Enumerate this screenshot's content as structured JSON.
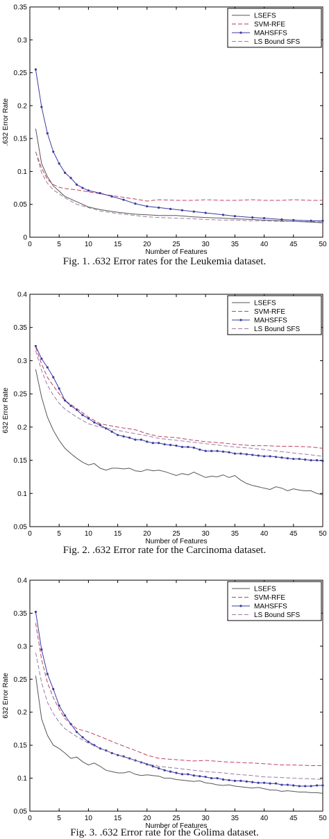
{
  "chart_data": [
    {
      "type": "line",
      "caption": "Fig. 1.  .632 Error rates for the Leukemia dataset.",
      "xlabel": "Number of Features",
      "ylabel": ".632 Error Rate",
      "xlim": [
        0,
        50
      ],
      "ylim": [
        0,
        0.35
      ],
      "xticks": [
        0,
        5,
        10,
        15,
        20,
        25,
        30,
        35,
        40,
        45,
        50
      ],
      "yticks": [
        0,
        0.05,
        0.1,
        0.15,
        0.2,
        0.25,
        0.3,
        0.35
      ],
      "ytick_labels": [
        "0",
        "0.05",
        "0.1",
        "0.15",
        "0.2",
        "0.25",
        "0.3",
        "0.35"
      ],
      "legend_position": "top-right",
      "series": [
        {
          "name": "LSEFS",
          "color": "#555555",
          "dash": "solid",
          "marker": false,
          "x": [
            1,
            2,
            3,
            4,
            5,
            6,
            8,
            10,
            12,
            15,
            18,
            20,
            22,
            25,
            28,
            30,
            33,
            35,
            38,
            40,
            43,
            45,
            48,
            50
          ],
          "y": [
            0.165,
            0.112,
            0.092,
            0.078,
            0.07,
            0.062,
            0.054,
            0.046,
            0.042,
            0.038,
            0.035,
            0.034,
            0.033,
            0.033,
            0.031,
            0.03,
            0.029,
            0.028,
            0.027,
            0.026,
            0.025,
            0.024,
            0.023,
            0.022
          ]
        },
        {
          "name": "SVM-RFE",
          "color": "#c04060",
          "dash": "dashed",
          "marker": false,
          "x": [
            1,
            2,
            3,
            4,
            5,
            6,
            8,
            10,
            12,
            15,
            18,
            20,
            22,
            25,
            28,
            30,
            33,
            35,
            38,
            40,
            43,
            45,
            48,
            50
          ],
          "y": [
            0.13,
            0.105,
            0.088,
            0.08,
            0.076,
            0.074,
            0.072,
            0.069,
            0.066,
            0.062,
            0.058,
            0.055,
            0.057,
            0.056,
            0.056,
            0.057,
            0.056,
            0.056,
            0.057,
            0.056,
            0.056,
            0.057,
            0.056,
            0.056
          ]
        },
        {
          "name": "MAHSFFS",
          "color": "#3a3aa0",
          "dash": "solid",
          "marker": true,
          "x": [
            1,
            2,
            3,
            4,
            5,
            6,
            7,
            8,
            9,
            10,
            12,
            14,
            16,
            18,
            20,
            22,
            24,
            26,
            28,
            30,
            33,
            35,
            38,
            40,
            43,
            45,
            48,
            50
          ],
          "y": [
            0.255,
            0.198,
            0.158,
            0.13,
            0.112,
            0.098,
            0.09,
            0.08,
            0.075,
            0.071,
            0.067,
            0.062,
            0.057,
            0.051,
            0.047,
            0.045,
            0.043,
            0.041,
            0.039,
            0.037,
            0.034,
            0.032,
            0.03,
            0.029,
            0.027,
            0.026,
            0.025,
            0.025
          ]
        },
        {
          "name": "LS Bound SFS",
          "color": "#9a7aa0",
          "dash": "dashed",
          "marker": false,
          "x": [
            1,
            2,
            3,
            4,
            5,
            6,
            8,
            10,
            12,
            15,
            18,
            20,
            22,
            25,
            28,
            30,
            33,
            35,
            38,
            40,
            43,
            45,
            48,
            50
          ],
          "y": [
            0.13,
            0.098,
            0.082,
            0.072,
            0.066,
            0.06,
            0.05,
            0.045,
            0.04,
            0.036,
            0.033,
            0.031,
            0.03,
            0.029,
            0.028,
            0.027,
            0.026,
            0.026,
            0.025,
            0.025,
            0.024,
            0.024,
            0.024,
            0.023
          ]
        }
      ]
    },
    {
      "type": "line",
      "caption": "Fig. 2.  .632 Error rate for the Carcinoma dataset.",
      "xlabel": "Number of Features",
      "ylabel": "632 Error Rate",
      "xlim": [
        0,
        50
      ],
      "ylim": [
        0.05,
        0.4
      ],
      "xticks": [
        0,
        5,
        10,
        15,
        20,
        25,
        30,
        35,
        40,
        45,
        50
      ],
      "yticks": [
        0.05,
        0.1,
        0.15,
        0.2,
        0.25,
        0.3,
        0.35,
        0.4
      ],
      "ytick_labels": [
        "0.05",
        "0.1",
        "0.15",
        "0.2",
        "0.25",
        "0.3",
        "0.35",
        "0.4"
      ],
      "legend_position": "top-right",
      "series": [
        {
          "name": "LSEFS",
          "color": "#555555",
          "dash": "solid",
          "marker": false,
          "x": [
            1,
            2,
            3,
            4,
            5,
            6,
            7,
            8,
            9,
            10,
            11,
            12,
            13,
            14,
            15,
            16,
            17,
            18,
            19,
            20,
            21,
            22,
            23,
            24,
            25,
            26,
            27,
            28,
            29,
            30,
            31,
            32,
            33,
            34,
            35,
            36,
            37,
            38,
            39,
            40,
            41,
            42,
            43,
            44,
            45,
            46,
            47,
            48,
            49,
            50
          ],
          "y": [
            0.287,
            0.245,
            0.215,
            0.195,
            0.18,
            0.168,
            0.16,
            0.153,
            0.147,
            0.143,
            0.145,
            0.138,
            0.135,
            0.138,
            0.138,
            0.137,
            0.138,
            0.134,
            0.133,
            0.136,
            0.134,
            0.135,
            0.133,
            0.13,
            0.127,
            0.13,
            0.128,
            0.132,
            0.128,
            0.124,
            0.126,
            0.125,
            0.128,
            0.124,
            0.127,
            0.12,
            0.115,
            0.112,
            0.11,
            0.108,
            0.106,
            0.11,
            0.108,
            0.104,
            0.107,
            0.105,
            0.104,
            0.104,
            0.1,
            0.098
          ]
        },
        {
          "name": "SVM-RFE",
          "color": "#c04060",
          "dash": "dashed",
          "marker": false,
          "x": [
            1,
            2,
            3,
            4,
            5,
            6,
            8,
            10,
            12,
            15,
            18,
            20,
            22,
            25,
            28,
            30,
            33,
            35,
            38,
            40,
            43,
            45,
            48,
            50
          ],
          "y": [
            0.32,
            0.295,
            0.275,
            0.262,
            0.25,
            0.24,
            0.228,
            0.215,
            0.205,
            0.2,
            0.196,
            0.19,
            0.186,
            0.184,
            0.18,
            0.178,
            0.176,
            0.174,
            0.172,
            0.172,
            0.171,
            0.171,
            0.17,
            0.168
          ]
        },
        {
          "name": "MAHSFFS",
          "color": "#3a3aa0",
          "dash": "solid",
          "marker": true,
          "x": [
            1,
            2,
            3,
            4,
            5,
            6,
            7,
            8,
            9,
            10,
            11,
            12,
            13,
            14,
            15,
            16,
            17,
            18,
            19,
            20,
            21,
            22,
            23,
            24,
            25,
            26,
            27,
            28,
            29,
            30,
            31,
            32,
            33,
            34,
            35,
            36,
            37,
            38,
            39,
            40,
            41,
            42,
            43,
            44,
            45,
            46,
            47,
            48,
            49,
            50
          ],
          "y": [
            0.322,
            0.303,
            0.29,
            0.275,
            0.258,
            0.24,
            0.232,
            0.226,
            0.218,
            0.213,
            0.207,
            0.203,
            0.198,
            0.193,
            0.188,
            0.186,
            0.184,
            0.181,
            0.181,
            0.178,
            0.176,
            0.176,
            0.174,
            0.173,
            0.172,
            0.17,
            0.17,
            0.169,
            0.166,
            0.164,
            0.164,
            0.164,
            0.163,
            0.162,
            0.16,
            0.16,
            0.159,
            0.158,
            0.157,
            0.156,
            0.156,
            0.155,
            0.154,
            0.153,
            0.152,
            0.152,
            0.151,
            0.15,
            0.15,
            0.149
          ]
        },
        {
          "name": "LS Bound SFS",
          "color": "#9a7aa0",
          "dash": "dashed",
          "marker": false,
          "x": [
            1,
            2,
            3,
            4,
            5,
            6,
            8,
            10,
            12,
            15,
            18,
            20,
            22,
            25,
            28,
            30,
            33,
            35,
            38,
            40,
            43,
            45,
            48,
            50
          ],
          "y": [
            0.315,
            0.285,
            0.263,
            0.248,
            0.236,
            0.227,
            0.215,
            0.205,
            0.2,
            0.195,
            0.19,
            0.187,
            0.183,
            0.18,
            0.177,
            0.175,
            0.172,
            0.17,
            0.168,
            0.166,
            0.163,
            0.161,
            0.158,
            0.156
          ]
        }
      ]
    },
    {
      "type": "line",
      "caption": "Fig. 3.  .632 Error rate for the Golima dataset.",
      "xlabel": "Number of Features",
      "ylabel": "632 Error Rate",
      "xlim": [
        0,
        50
      ],
      "ylim": [
        0.05,
        0.4
      ],
      "xticks": [
        0,
        5,
        10,
        15,
        20,
        25,
        30,
        35,
        40,
        45,
        50
      ],
      "yticks": [
        0.05,
        0.1,
        0.15,
        0.2,
        0.25,
        0.3,
        0.35,
        0.4
      ],
      "ytick_labels": [
        "0.05",
        "0.1",
        "0.15",
        "0.2",
        "0.25",
        "0.3",
        "0.35",
        "0.4"
      ],
      "legend_position": "top-right",
      "series": [
        {
          "name": "LSEFS",
          "color": "#555555",
          "dash": "solid",
          "marker": false,
          "x": [
            1,
            2,
            3,
            4,
            5,
            6,
            7,
            8,
            9,
            10,
            11,
            12,
            13,
            14,
            15,
            16,
            17,
            18,
            19,
            20,
            21,
            22,
            23,
            24,
            25,
            26,
            27,
            28,
            29,
            30,
            31,
            32,
            33,
            34,
            35,
            36,
            37,
            38,
            39,
            40,
            41,
            42,
            43,
            44,
            45,
            46,
            47,
            48,
            49,
            50
          ],
          "y": [
            0.255,
            0.19,
            0.165,
            0.15,
            0.145,
            0.138,
            0.13,
            0.132,
            0.125,
            0.12,
            0.123,
            0.118,
            0.112,
            0.11,
            0.108,
            0.108,
            0.11,
            0.106,
            0.104,
            0.105,
            0.104,
            0.103,
            0.1,
            0.1,
            0.098,
            0.097,
            0.096,
            0.095,
            0.096,
            0.093,
            0.092,
            0.09,
            0.089,
            0.09,
            0.088,
            0.087,
            0.086,
            0.085,
            0.086,
            0.084,
            0.082,
            0.082,
            0.08,
            0.081,
            0.08,
            0.079,
            0.079,
            0.078,
            0.078,
            0.077
          ]
        },
        {
          "name": "SVM-RFE",
          "color": "#c04060",
          "dash": "dashed",
          "marker": false,
          "x": [
            1,
            2,
            3,
            4,
            5,
            6,
            8,
            10,
            12,
            15,
            18,
            20,
            22,
            25,
            28,
            30,
            33,
            35,
            38,
            40,
            43,
            45,
            48,
            50
          ],
          "y": [
            0.335,
            0.28,
            0.245,
            0.222,
            0.205,
            0.19,
            0.175,
            0.17,
            0.163,
            0.152,
            0.142,
            0.135,
            0.13,
            0.128,
            0.126,
            0.127,
            0.125,
            0.124,
            0.123,
            0.122,
            0.12,
            0.12,
            0.119,
            0.119
          ]
        },
        {
          "name": "MAHSFFS",
          "color": "#3a3aa0",
          "dash": "solid",
          "marker": true,
          "x": [
            1,
            2,
            3,
            4,
            5,
            6,
            7,
            8,
            9,
            10,
            11,
            12,
            13,
            14,
            15,
            16,
            17,
            18,
            19,
            20,
            21,
            22,
            23,
            24,
            25,
            26,
            27,
            28,
            29,
            30,
            31,
            32,
            33,
            34,
            35,
            36,
            37,
            38,
            39,
            40,
            41,
            42,
            43,
            44,
            45,
            46,
            47,
            48,
            49,
            50
          ],
          "y": [
            0.352,
            0.295,
            0.258,
            0.235,
            0.21,
            0.195,
            0.182,
            0.17,
            0.162,
            0.155,
            0.15,
            0.145,
            0.142,
            0.138,
            0.135,
            0.133,
            0.13,
            0.127,
            0.124,
            0.121,
            0.118,
            0.115,
            0.112,
            0.11,
            0.108,
            0.106,
            0.106,
            0.104,
            0.103,
            0.102,
            0.1,
            0.1,
            0.098,
            0.097,
            0.096,
            0.096,
            0.095,
            0.094,
            0.093,
            0.093,
            0.092,
            0.092,
            0.09,
            0.09,
            0.089,
            0.088,
            0.088,
            0.088,
            0.089,
            0.089
          ]
        },
        {
          "name": "LS Bound SFS",
          "color": "#9a7aa0",
          "dash": "dashed",
          "marker": false,
          "x": [
            1,
            2,
            3,
            4,
            5,
            6,
            8,
            10,
            12,
            15,
            18,
            20,
            22,
            25,
            28,
            30,
            33,
            35,
            38,
            40,
            43,
            45,
            48,
            50
          ],
          "y": [
            0.29,
            0.245,
            0.215,
            0.198,
            0.185,
            0.175,
            0.163,
            0.153,
            0.145,
            0.135,
            0.127,
            0.122,
            0.118,
            0.115,
            0.112,
            0.11,
            0.108,
            0.106,
            0.104,
            0.102,
            0.101,
            0.1,
            0.099,
            0.098
          ]
        }
      ]
    }
  ]
}
